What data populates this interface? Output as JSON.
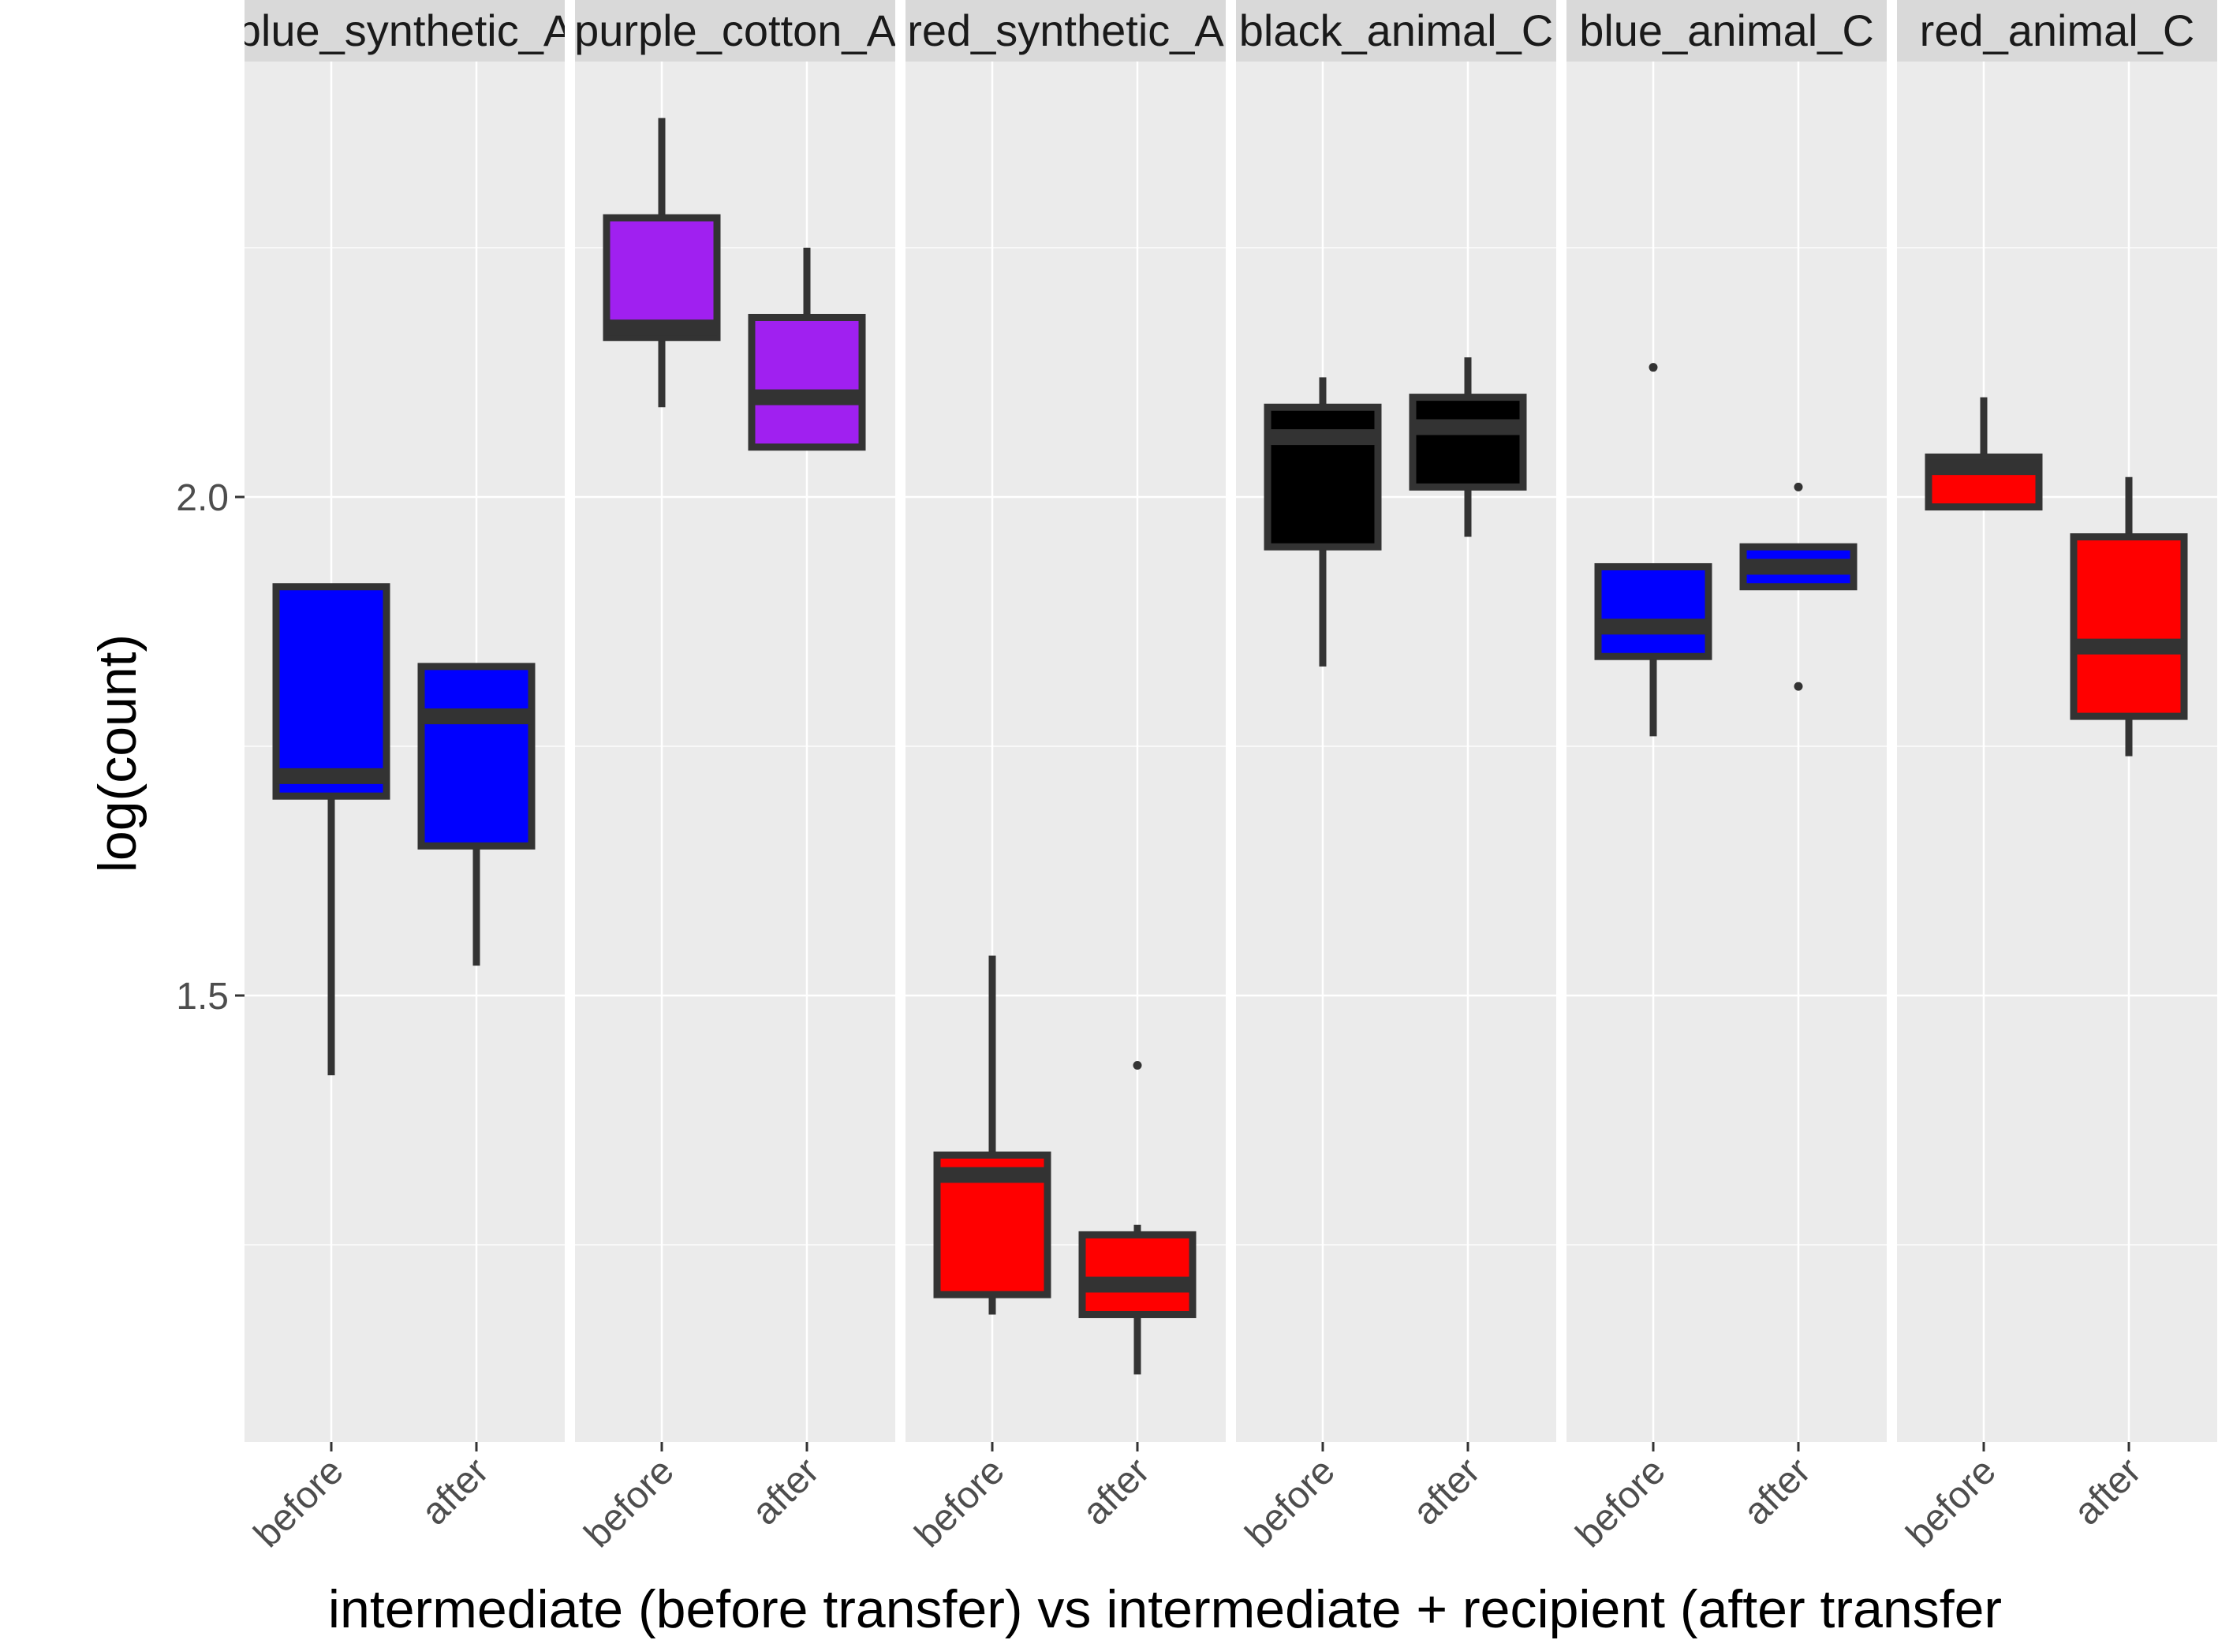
{
  "chart_data": {
    "type": "boxplot",
    "xlabel": "intermediate (before transfer) vs intermediate + recipient (after transfer",
    "ylabel": "log(count)",
    "ylim": [
      1.06,
      2.44
    ],
    "yticks": [
      1.5,
      2.0
    ],
    "ytick_labels": [
      "1.5",
      "2.0"
    ],
    "categories": [
      "before",
      "after"
    ],
    "grid": true,
    "legend": "none",
    "colors": {
      "panel_bg": "#ebebeb",
      "strip_bg": "#d9d9d9",
      "grid": "#ffffff",
      "box_outline": "#333333"
    },
    "facets": [
      {
        "label": "blue_synthetic_A",
        "fill": "#0000ff",
        "boxes": [
          {
            "category": "before",
            "min": 1.42,
            "q1": 1.7,
            "median": 1.72,
            "q3": 1.91,
            "max": 1.91,
            "outliers": []
          },
          {
            "category": "after",
            "min": 1.53,
            "q1": 1.65,
            "median": 1.78,
            "q3": 1.83,
            "max": 1.83,
            "outliers": []
          }
        ]
      },
      {
        "label": "purple_cotton_A",
        "fill": "#a020f0",
        "boxes": [
          {
            "category": "before",
            "min": 2.09,
            "q1": 2.16,
            "median": 2.17,
            "q3": 2.28,
            "max": 2.38,
            "outliers": []
          },
          {
            "category": "after",
            "min": 2.05,
            "q1": 2.05,
            "median": 2.1,
            "q3": 2.18,
            "max": 2.25,
            "outliers": []
          }
        ]
      },
      {
        "label": "red_synthetic_A",
        "fill": "#ff0000",
        "boxes": [
          {
            "category": "before",
            "min": 1.18,
            "q1": 1.2,
            "median": 1.32,
            "q3": 1.34,
            "max": 1.54,
            "outliers": []
          },
          {
            "category": "after",
            "min": 1.12,
            "q1": 1.18,
            "median": 1.21,
            "q3": 1.26,
            "max": 1.27,
            "outliers": [
              1.43
            ]
          }
        ]
      },
      {
        "label": "black_animal_C",
        "fill": "#000000",
        "boxes": [
          {
            "category": "before",
            "min": 1.83,
            "q1": 1.95,
            "median": 2.06,
            "q3": 2.09,
            "max": 2.12,
            "outliers": []
          },
          {
            "category": "after",
            "min": 1.96,
            "q1": 2.01,
            "median": 2.07,
            "q3": 2.1,
            "max": 2.14,
            "outliers": []
          }
        ]
      },
      {
        "label": "blue_animal_C",
        "fill": "#0000ff",
        "boxes": [
          {
            "category": "before",
            "min": 1.76,
            "q1": 1.84,
            "median": 1.87,
            "q3": 1.93,
            "max": 1.93,
            "outliers": [
              2.13
            ]
          },
          {
            "category": "after",
            "min": 1.91,
            "q1": 1.91,
            "median": 1.93,
            "q3": 1.95,
            "max": 1.95,
            "outliers": [
              2.01,
              1.81
            ]
          }
        ]
      },
      {
        "label": "red_animal_C",
        "fill": "#ff0000",
        "boxes": [
          {
            "category": "before",
            "min": 1.99,
            "q1": 1.99,
            "median": 2.03,
            "q3": 2.04,
            "max": 2.1,
            "outliers": []
          },
          {
            "category": "after",
            "min": 1.74,
            "q1": 1.78,
            "median": 1.85,
            "q3": 1.96,
            "max": 2.02,
            "outliers": []
          }
        ]
      }
    ]
  }
}
